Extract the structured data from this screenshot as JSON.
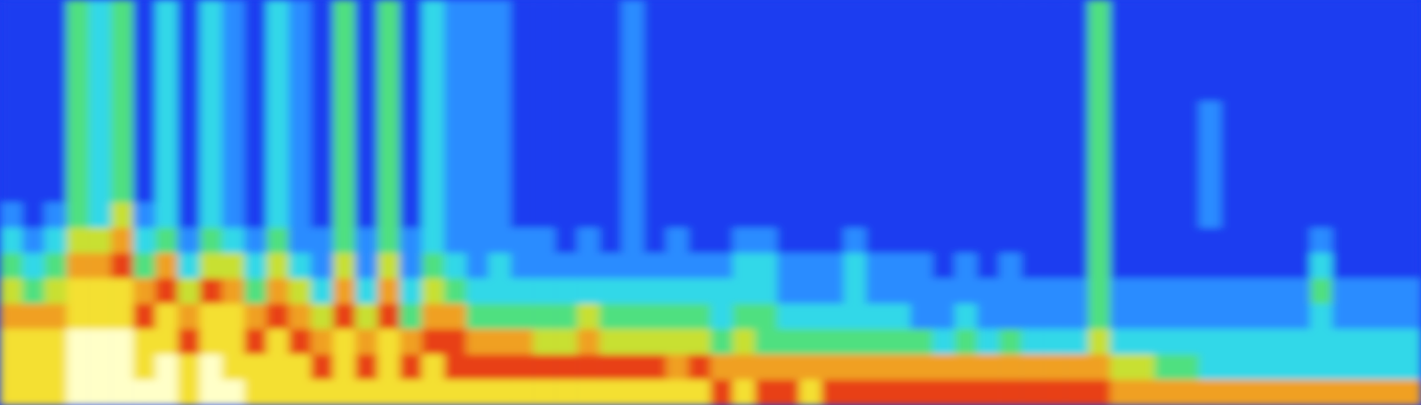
{
  "chart_data": {
    "type": "heatmap",
    "tick_labels": false,
    "zlim": [
      0,
      9
    ],
    "cells": [
      [
        1,
        1,
        1,
        4,
        3,
        4,
        1,
        3,
        1,
        3,
        2,
        1,
        3,
        2,
        1,
        4,
        1,
        4,
        1,
        3,
        2,
        2,
        2,
        1,
        1,
        1,
        1,
        1,
        2,
        1,
        1,
        1,
        1,
        1,
        1,
        1,
        1,
        1,
        1,
        1,
        1,
        1,
        1,
        1,
        1,
        1,
        1,
        1,
        1,
        4,
        1,
        1,
        1,
        1,
        1,
        1,
        1,
        1,
        1,
        1,
        1,
        1,
        1,
        1
      ],
      [
        1,
        1,
        1,
        4,
        3,
        4,
        1,
        3,
        1,
        3,
        2,
        1,
        3,
        2,
        1,
        4,
        1,
        4,
        1,
        3,
        2,
        2,
        2,
        1,
        1,
        1,
        1,
        1,
        2,
        1,
        1,
        1,
        1,
        1,
        1,
        1,
        1,
        1,
        1,
        1,
        1,
        1,
        1,
        1,
        1,
        1,
        1,
        1,
        1,
        4,
        1,
        1,
        1,
        1,
        1,
        1,
        1,
        1,
        1,
        1,
        1,
        1,
        1,
        1
      ],
      [
        1,
        1,
        1,
        4,
        3,
        4,
        1,
        3,
        1,
        3,
        2,
        1,
        3,
        2,
        1,
        4,
        1,
        4,
        1,
        3,
        2,
        2,
        2,
        1,
        1,
        1,
        1,
        1,
        2,
        1,
        1,
        1,
        1,
        1,
        1,
        1,
        1,
        1,
        1,
        1,
        1,
        1,
        1,
        1,
        1,
        1,
        1,
        1,
        1,
        4,
        1,
        1,
        1,
        1,
        1,
        1,
        1,
        1,
        1,
        1,
        1,
        1,
        1,
        1
      ],
      [
        1,
        1,
        1,
        4,
        3,
        4,
        1,
        3,
        1,
        3,
        2,
        1,
        3,
        2,
        1,
        4,
        1,
        4,
        1,
        3,
        2,
        2,
        2,
        1,
        1,
        1,
        1,
        1,
        2,
        1,
        1,
        1,
        1,
        1,
        1,
        1,
        1,
        1,
        1,
        1,
        1,
        1,
        1,
        1,
        1,
        1,
        1,
        1,
        1,
        4,
        1,
        1,
        1,
        1,
        1,
        1,
        1,
        1,
        1,
        1,
        1,
        1,
        1,
        1
      ],
      [
        1,
        1,
        1,
        4,
        3,
        4,
        1,
        3,
        1,
        3,
        2,
        1,
        3,
        2,
        1,
        4,
        1,
        4,
        1,
        3,
        2,
        2,
        2,
        1,
        1,
        1,
        1,
        1,
        2,
        1,
        1,
        1,
        1,
        1,
        1,
        1,
        1,
        1,
        1,
        1,
        1,
        1,
        1,
        1,
        1,
        1,
        1,
        1,
        1,
        4,
        1,
        1,
        1,
        1,
        2,
        1,
        1,
        1,
        1,
        1,
        1,
        1,
        1,
        1
      ],
      [
        1,
        1,
        1,
        4,
        3,
        4,
        1,
        3,
        1,
        3,
        2,
        1,
        3,
        2,
        1,
        4,
        1,
        4,
        1,
        3,
        2,
        2,
        2,
        1,
        1,
        1,
        1,
        1,
        2,
        1,
        1,
        1,
        1,
        1,
        1,
        1,
        1,
        1,
        1,
        1,
        1,
        1,
        1,
        1,
        1,
        1,
        1,
        1,
        1,
        4,
        1,
        1,
        1,
        1,
        2,
        1,
        1,
        1,
        1,
        1,
        1,
        1,
        1,
        1
      ],
      [
        1,
        1,
        1,
        4,
        3,
        4,
        1,
        3,
        1,
        3,
        2,
        1,
        3,
        2,
        1,
        4,
        1,
        4,
        1,
        3,
        2,
        2,
        2,
        1,
        1,
        1,
        1,
        1,
        2,
        1,
        1,
        1,
        1,
        1,
        1,
        1,
        1,
        1,
        1,
        1,
        1,
        1,
        1,
        1,
        1,
        1,
        1,
        1,
        1,
        4,
        1,
        1,
        1,
        1,
        2,
        1,
        1,
        1,
        1,
        1,
        1,
        1,
        1,
        1
      ],
      [
        1,
        1,
        1,
        4,
        3,
        4,
        1,
        3,
        1,
        3,
        2,
        1,
        3,
        2,
        1,
        4,
        1,
        4,
        1,
        3,
        2,
        2,
        2,
        1,
        1,
        1,
        1,
        1,
        2,
        1,
        1,
        1,
        1,
        1,
        1,
        1,
        1,
        1,
        1,
        1,
        1,
        1,
        1,
        1,
        1,
        1,
        1,
        1,
        1,
        4,
        1,
        1,
        1,
        1,
        2,
        1,
        1,
        1,
        1,
        1,
        1,
        1,
        1,
        1
      ],
      [
        2,
        1,
        2,
        4,
        3,
        5,
        2,
        3,
        1,
        3,
        2,
        1,
        3,
        2,
        1,
        4,
        1,
        4,
        1,
        3,
        2,
        2,
        2,
        1,
        1,
        1,
        1,
        1,
        2,
        1,
        1,
        1,
        1,
        1,
        1,
        1,
        1,
        1,
        1,
        1,
        1,
        1,
        1,
        1,
        1,
        1,
        1,
        1,
        1,
        4,
        1,
        1,
        1,
        1,
        2,
        1,
        1,
        1,
        1,
        1,
        1,
        1,
        1,
        1
      ],
      [
        3,
        2,
        3,
        5,
        5,
        6,
        3,
        4,
        2,
        4,
        3,
        2,
        4,
        2,
        2,
        4,
        2,
        4,
        2,
        3,
        2,
        2,
        2,
        2,
        2,
        1,
        2,
        1,
        2,
        1,
        2,
        1,
        1,
        2,
        2,
        1,
        1,
        1,
        2,
        1,
        1,
        1,
        1,
        1,
        1,
        1,
        1,
        1,
        1,
        4,
        1,
        1,
        1,
        1,
        1,
        1,
        1,
        1,
        1,
        2,
        1,
        1,
        1,
        1
      ],
      [
        4,
        3,
        4,
        6,
        6,
        7,
        4,
        6,
        3,
        5,
        5,
        3,
        5,
        3,
        2,
        5,
        2,
        5,
        2,
        4,
        3,
        2,
        3,
        2,
        2,
        2,
        2,
        2,
        2,
        2,
        2,
        2,
        2,
        3,
        3,
        2,
        2,
        2,
        3,
        2,
        2,
        2,
        1,
        2,
        1,
        2,
        1,
        1,
        1,
        4,
        1,
        1,
        1,
        1,
        1,
        1,
        1,
        1,
        1,
        3,
        1,
        1,
        1,
        1
      ],
      [
        5,
        4,
        5,
        8,
        8,
        8,
        6,
        7,
        5,
        7,
        6,
        4,
        6,
        5,
        3,
        6,
        3,
        6,
        3,
        5,
        4,
        3,
        3,
        3,
        3,
        3,
        3,
        3,
        3,
        3,
        3,
        3,
        3,
        3,
        3,
        2,
        2,
        2,
        3,
        2,
        2,
        2,
        2,
        2,
        2,
        2,
        2,
        2,
        2,
        4,
        2,
        2,
        2,
        2,
        2,
        2,
        2,
        2,
        2,
        4,
        2,
        2,
        2,
        2
      ],
      [
        6,
        6,
        6,
        8,
        8,
        8,
        7,
        8,
        6,
        8,
        8,
        6,
        7,
        6,
        5,
        7,
        5,
        7,
        4,
        6,
        6,
        4,
        4,
        4,
        4,
        4,
        5,
        4,
        4,
        4,
        4,
        4,
        3,
        4,
        4,
        3,
        3,
        3,
        3,
        3,
        3,
        2,
        2,
        3,
        2,
        2,
        2,
        2,
        2,
        4,
        2,
        2,
        2,
        2,
        2,
        2,
        2,
        2,
        2,
        3,
        2,
        2,
        2,
        2
      ],
      [
        8,
        8,
        8,
        9,
        9,
        9,
        8,
        8,
        7,
        8,
        8,
        7,
        8,
        7,
        6,
        8,
        6,
        8,
        6,
        7,
        7,
        6,
        6,
        6,
        5,
        5,
        6,
        5,
        5,
        5,
        5,
        5,
        4,
        5,
        4,
        4,
        4,
        4,
        4,
        4,
        4,
        4,
        3,
        4,
        3,
        4,
        3,
        3,
        3,
        5,
        3,
        3,
        3,
        3,
        3,
        3,
        3,
        3,
        3,
        3,
        3,
        3,
        3,
        3
      ],
      [
        8,
        8,
        8,
        9,
        9,
        9,
        8,
        9,
        8,
        9,
        8,
        8,
        8,
        8,
        7,
        8,
        7,
        8,
        7,
        8,
        7,
        7,
        7,
        7,
        7,
        7,
        7,
        7,
        7,
        7,
        6,
        7,
        6,
        6,
        6,
        6,
        6,
        6,
        6,
        6,
        6,
        6,
        6,
        6,
        6,
        6,
        6,
        6,
        6,
        6,
        5,
        5,
        4,
        4,
        3,
        3,
        3,
        3,
        3,
        3,
        3,
        3,
        3,
        3
      ],
      [
        8,
        8,
        8,
        9,
        9,
        9,
        9,
        9,
        8,
        9,
        9,
        8,
        8,
        8,
        8,
        8,
        8,
        8,
        8,
        8,
        8,
        8,
        8,
        8,
        8,
        8,
        8,
        8,
        8,
        8,
        8,
        8,
        7,
        8,
        7,
        7,
        8,
        7,
        7,
        7,
        7,
        7,
        7,
        7,
        7,
        7,
        7,
        7,
        7,
        7,
        6,
        6,
        6,
        6,
        6,
        6,
        6,
        6,
        6,
        6,
        6,
        6,
        6,
        6
      ]
    ]
  }
}
